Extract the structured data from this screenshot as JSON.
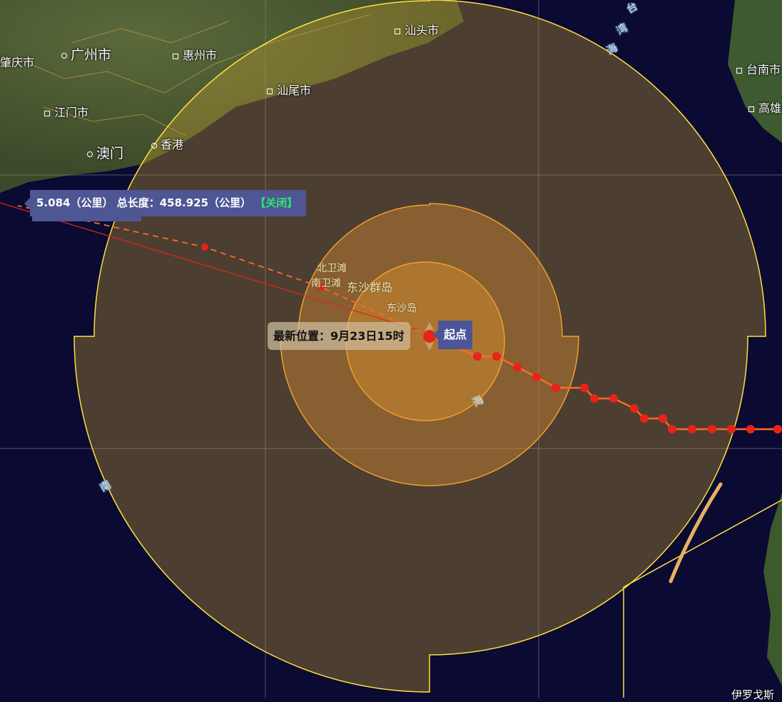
{
  "map": {
    "cities": [
      {
        "name": "肇庆市",
        "marker": "none"
      },
      {
        "name": "广州市",
        "marker": "ring"
      },
      {
        "name": "惠州市",
        "marker": "square"
      },
      {
        "name": "汕头市",
        "marker": "square"
      },
      {
        "name": "汕尾市",
        "marker": "square"
      },
      {
        "name": "江门市",
        "marker": "square"
      },
      {
        "name": "澳门",
        "marker": "ring"
      },
      {
        "name": "香港",
        "marker": "ring"
      },
      {
        "name": "台南市",
        "marker": "square"
      },
      {
        "name": "高雄",
        "marker": "square"
      }
    ],
    "islands": [
      "北卫滩",
      "南卫滩",
      "东沙群岛",
      "东沙岛"
    ],
    "sea_labels": [
      "台",
      "湾",
      "海",
      "南",
      "海"
    ],
    "bottom_label": "伊罗戈斯"
  },
  "typhoon": {
    "latest_position_label": "最新位置：9月23日15时",
    "start_label": "起点",
    "colors": {
      "track": "#e8231a",
      "track_line": "#ff6a2a",
      "wind_7": "#c8a030",
      "wind_10": "#e09030",
      "wind_12": "#f0a030",
      "outline": "#ffe040"
    }
  },
  "measure": {
    "segment": "5.084（公里）",
    "total_label": "总长度：",
    "total": "458.925（公里）",
    "close": "【关闭】"
  }
}
